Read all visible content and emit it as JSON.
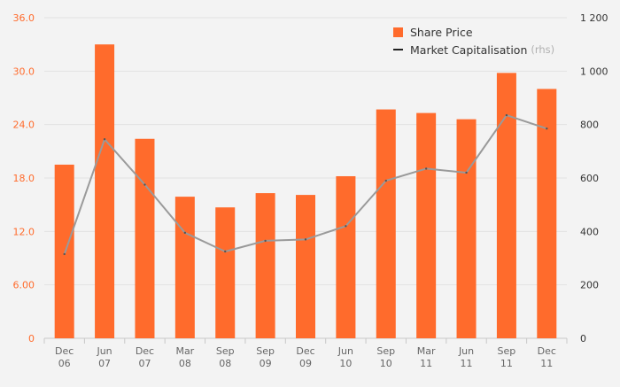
{
  "chart_data": {
    "type": "bar",
    "categories": [
      "Dec 06",
      "Jun 07",
      "Dec 07",
      "Mar 08",
      "Sep 08",
      "Sep 09",
      "Dec 09",
      "Jun 10",
      "Sep 10",
      "Mar 11",
      "Jun 11",
      "Sep 11",
      "Dec 11"
    ],
    "category_lines": [
      [
        "Dec",
        "06"
      ],
      [
        "Jun",
        "07"
      ],
      [
        "Dec",
        "07"
      ],
      [
        "Mar",
        "08"
      ],
      [
        "Sep",
        "08"
      ],
      [
        "Sep",
        "09"
      ],
      [
        "Dec",
        "09"
      ],
      [
        "Jun",
        "10"
      ],
      [
        "Sep",
        "10"
      ],
      [
        "Mar",
        "11"
      ],
      [
        "Jun",
        "11"
      ],
      [
        "Sep",
        "11"
      ],
      [
        "Dec",
        "11"
      ]
    ],
    "series": [
      {
        "name": "Share Price",
        "type": "bar",
        "axis": "left",
        "color": "#ff6b2c",
        "values": [
          19.5,
          33.0,
          22.4,
          15.9,
          14.7,
          16.3,
          16.1,
          18.2,
          25.7,
          25.3,
          24.6,
          29.8,
          28.0
        ]
      },
      {
        "name": "Market Capitalisation",
        "type": "line",
        "axis": "right",
        "color": "#9a9a9a",
        "values": [
          315,
          745,
          575,
          395,
          325,
          365,
          370,
          420,
          590,
          635,
          620,
          835,
          785
        ]
      }
    ],
    "legend": {
      "note": "(rhs)",
      "placement": "top-right"
    },
    "y_left": {
      "ticks": [
        "0",
        "6.00",
        "12.0",
        "18.0",
        "24.0",
        "30.0",
        "36.0"
      ],
      "tick_values": [
        0,
        6,
        12,
        18,
        24,
        30,
        36
      ],
      "ylim": [
        0,
        36
      ],
      "color": "#ff6b2c"
    },
    "y_right": {
      "ticks": [
        "0",
        "200",
        "400",
        "600",
        "800",
        "1 000",
        "1 200"
      ],
      "tick_values": [
        0,
        200,
        400,
        600,
        800,
        1000,
        1200
      ],
      "ylim": [
        0,
        1200
      ],
      "color": "#333333"
    },
    "grid": true,
    "xlabel": "",
    "ylabel": ""
  }
}
